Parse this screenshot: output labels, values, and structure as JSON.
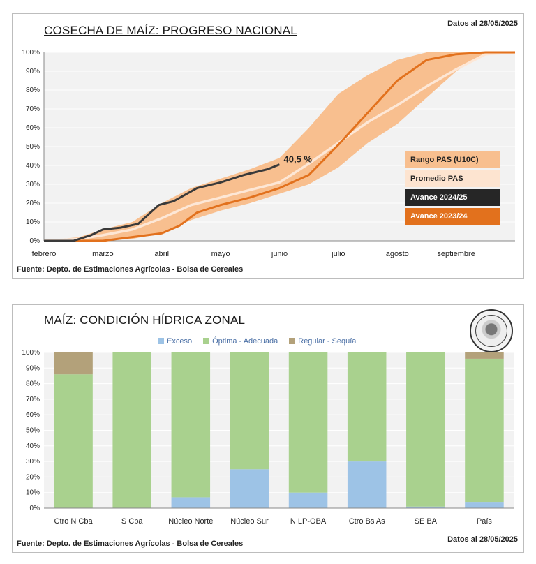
{
  "panel1": {
    "title": "COSECHA DE MAÍZ: PROGRESO NACIONAL",
    "date": "Datos al 28/05/2025",
    "source": "Fuente: Depto. de Estimaciones Agrícolas - Bolsa de Cereales",
    "logo_text": "Bolsa de Cereales",
    "annotation": "40,5 %",
    "legend": [
      {
        "label": "Rango PAS (U10C)",
        "bg": "#f8bf8f",
        "fg": "#222222"
      },
      {
        "label": "Promedio PAS",
        "bg": "#fde4d0",
        "fg": "#222222"
      },
      {
        "label": "Avance 2024/25",
        "bg": "#262626",
        "fg": "#ffffff"
      },
      {
        "label": "Avance 2023/24",
        "bg": "#e2711d",
        "fg": "#ffffff"
      }
    ]
  },
  "panel2": {
    "title": "MAÍZ: CONDICIÓN HÍDRICA ZONAL",
    "date": "Datos al 28/05/2025",
    "source": "Fuente: Depto. de Estimaciones Agrícolas - Bolsa de Cereales",
    "logo_text": "Bolsa de Cereales"
  },
  "colors": {
    "range": "#f8bf8f",
    "average": "#fde7d6",
    "current": "#3a3a3a",
    "previous": "#e2711d",
    "exceso": "#9dc3e6",
    "optima": "#a9d18e",
    "regular": "#b3a17a",
    "plot_bg": "#f2f2f2"
  },
  "chart_data": [
    {
      "type": "line",
      "title": "COSECHA DE MAÍZ: PROGRESO NACIONAL",
      "x_axis": [
        "febrero",
        "marzo",
        "abril",
        "mayo",
        "junio",
        "julio",
        "agosto",
        "septiembre"
      ],
      "y_ticks": [
        "0%",
        "10%",
        "20%",
        "30%",
        "40%",
        "50%",
        "60%",
        "70%",
        "80%",
        "90%",
        "100%"
      ],
      "ylim": [
        0,
        100
      ],
      "x_unit": "month index (0 = febrero)",
      "series": [
        {
          "name": "Rango PAS (U10C)",
          "kind": "band",
          "x": [
            0,
            0.6,
            1.0,
            1.5,
            2.0,
            2.5,
            3.0,
            3.5,
            4.0,
            4.5,
            5.0,
            5.5,
            6.0,
            6.5,
            7.0,
            7.3,
            7.5,
            8.0
          ],
          "upper": [
            0,
            2,
            6,
            10,
            20,
            28,
            33,
            38,
            44,
            60,
            78,
            88,
            96,
            100,
            100,
            100,
            100,
            100
          ],
          "lower": [
            0,
            0,
            0,
            1,
            4,
            11,
            16,
            20,
            25,
            30,
            39,
            52,
            62,
            76,
            90,
            96,
            99,
            100
          ]
        },
        {
          "name": "Promedio PAS",
          "x": [
            0,
            0.6,
            1.0,
            1.5,
            2.0,
            2.5,
            3.0,
            3.5,
            4.0,
            4.5,
            5.0,
            5.5,
            6.0,
            6.5,
            7.0,
            7.5,
            8.0
          ],
          "y": [
            0,
            1,
            3,
            6,
            12,
            19,
            23,
            27,
            31,
            41,
            52,
            63,
            72,
            82,
            91,
            99,
            100
          ]
        },
        {
          "name": "Avance 2024/25",
          "x": [
            0,
            0.5,
            0.8,
            1.0,
            1.3,
            1.6,
            1.95,
            2.2,
            2.6,
            3.0,
            3.4,
            3.8,
            4.0
          ],
          "y": [
            0,
            0,
            3,
            6,
            7,
            9,
            19,
            21,
            28,
            31,
            35,
            38,
            40.5
          ]
        },
        {
          "name": "Avance 2023/24",
          "x": [
            0,
            0.8,
            1.0,
            1.5,
            2.0,
            2.3,
            2.6,
            3.0,
            3.5,
            4.0,
            4.5,
            5.0,
            5.5,
            6.0,
            6.5,
            7.0,
            7.5,
            8.0
          ],
          "y": [
            0,
            0,
            0,
            2,
            4,
            8,
            15,
            19,
            23,
            28,
            35,
            51,
            68,
            85,
            96,
            99,
            100,
            100
          ]
        }
      ]
    },
    {
      "type": "bar",
      "stacked": true,
      "title": "MAÍZ: CONDICIÓN HÍDRICA ZONAL",
      "categories": [
        "Ctro N Cba",
        "S Cba",
        "Núcleo Norte",
        "Núcleo Sur",
        "N LP-OBA",
        "Ctro Bs As",
        "SE BA",
        "País"
      ],
      "y_ticks": [
        "0%",
        "10%",
        "20%",
        "30%",
        "40%",
        "50%",
        "60%",
        "70%",
        "80%",
        "90%",
        "100%"
      ],
      "ylim": [
        0,
        100
      ],
      "legend_position": "top",
      "series": [
        {
          "name": "Exceso",
          "values": [
            0,
            0,
            7,
            25,
            10,
            30,
            1,
            4
          ]
        },
        {
          "name": "Óptima - Adecuada",
          "values": [
            86,
            100,
            93,
            75,
            90,
            70,
            99,
            92
          ]
        },
        {
          "name": "Regular - Sequía",
          "values": [
            14,
            0,
            0,
            0,
            0,
            0,
            0,
            4
          ]
        }
      ]
    }
  ]
}
